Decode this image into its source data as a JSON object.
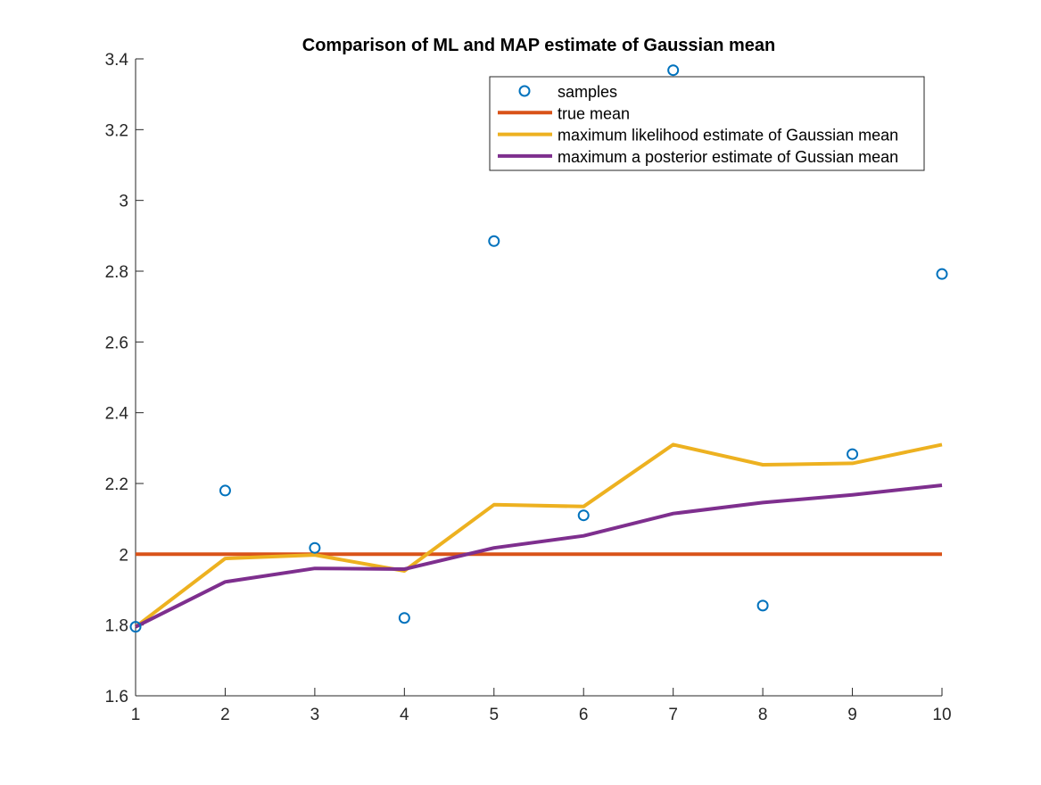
{
  "chart_data": {
    "type": "line",
    "title": "Comparison of ML and MAP estimate of Gaussian mean",
    "xlabel": "",
    "ylabel": "",
    "xlim": [
      1,
      10
    ],
    "ylim": [
      1.6,
      3.4
    ],
    "xticks": [
      1,
      2,
      3,
      4,
      5,
      6,
      7,
      8,
      9,
      10
    ],
    "yticks": [
      1.6,
      1.8,
      2,
      2.2,
      2.4,
      2.6,
      2.8,
      3,
      3.2,
      3.4
    ],
    "xtick_labels": [
      "1",
      "2",
      "3",
      "4",
      "5",
      "6",
      "7",
      "8",
      "9",
      "10"
    ],
    "ytick_labels": [
      "1.6",
      "1.8",
      "2",
      "2.2",
      "2.4",
      "2.6",
      "2.8",
      "3",
      "3.2",
      "3.4"
    ],
    "grid": false,
    "legend_position": "top-right",
    "x": [
      1,
      2,
      3,
      4,
      5,
      6,
      7,
      8,
      9,
      10
    ],
    "series": [
      {
        "name": "samples",
        "style": "markers",
        "marker": "circle",
        "color": "#0072BD",
        "values": [
          1.795,
          2.18,
          2.018,
          1.82,
          2.885,
          2.11,
          3.368,
          1.855,
          2.283,
          2.792
        ]
      },
      {
        "name": "true mean",
        "style": "line",
        "color": "#D95319",
        "values": [
          2,
          2,
          2,
          2,
          2,
          2,
          2,
          2,
          2,
          2
        ]
      },
      {
        "name": "maximum likelihood estimate of Gaussian mean",
        "style": "line",
        "color": "#EDB120",
        "values": [
          1.795,
          1.988,
          1.998,
          1.953,
          2.14,
          2.135,
          2.31,
          2.253,
          2.257,
          2.31
        ]
      },
      {
        "name": "maximum a posterior estimate of Gussian mean",
        "style": "line",
        "color": "#7E2F8E",
        "values": [
          1.795,
          1.922,
          1.96,
          1.958,
          2.018,
          2.052,
          2.115,
          2.146,
          2.168,
          2.195
        ]
      }
    ]
  }
}
